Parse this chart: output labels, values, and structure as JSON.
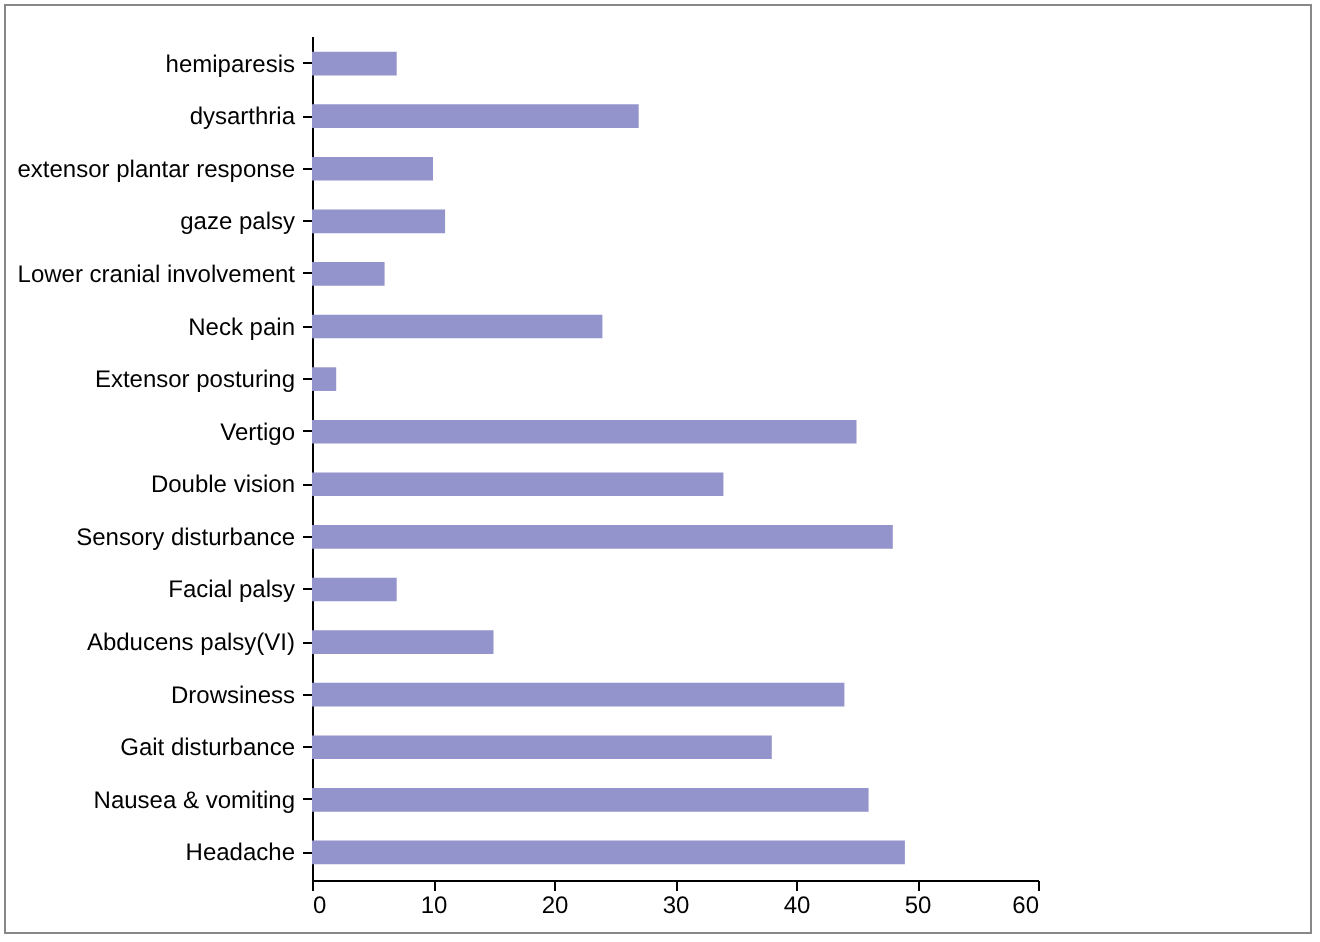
{
  "chart_data": {
    "type": "bar",
    "orientation": "horizontal",
    "categories": [
      "hemiparesis",
      "dysarthria",
      "extensor plantar response",
      "gaze palsy",
      "Lower cranial involvement",
      "Neck pain",
      "Extensor posturing",
      "Vertigo",
      "Double vision",
      "Sensory disturbance",
      "Facial palsy",
      "Abducens palsy(VI)",
      "Drowsiness",
      "Gait disturbance",
      "Nausea & vomiting",
      "Headache"
    ],
    "values": [
      7,
      27,
      10,
      11,
      6,
      24,
      2,
      45,
      34,
      48,
      7,
      15,
      44,
      38,
      46,
      49
    ],
    "color": "#9494cc",
    "xlim": [
      0,
      60
    ],
    "xticks": [
      0,
      10,
      20,
      30,
      40,
      50,
      60
    ],
    "grid": false
  }
}
